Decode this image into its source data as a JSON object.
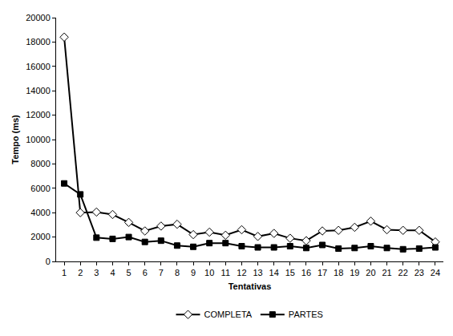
{
  "chart_data": {
    "type": "line",
    "x_label": "Tentativas",
    "y_label": "Tempo (ms)",
    "categories": [
      "1",
      "2",
      "3",
      "4",
      "5",
      "6",
      "7",
      "8",
      "9",
      "10",
      "11",
      "12",
      "13",
      "14",
      "15",
      "16",
      "17",
      "18",
      "19",
      "20",
      "21",
      "22",
      "23",
      "24"
    ],
    "series": [
      {
        "name": "COMPLETA",
        "color": "#000000",
        "marker": "diamond-open",
        "line_style": "solid",
        "values": [
          18400,
          4000,
          4050,
          3850,
          3200,
          2500,
          2900,
          3050,
          2200,
          2400,
          2150,
          2600,
          2050,
          2300,
          1900,
          1700,
          2500,
          2550,
          2800,
          3300,
          2600,
          2550,
          2550,
          1600
        ]
      },
      {
        "name": "PARTES",
        "color": "#000000",
        "marker": "square",
        "line_style": "solid",
        "values": [
          6400,
          5500,
          1950,
          1850,
          2000,
          1600,
          1700,
          1300,
          1200,
          1500,
          1500,
          1250,
          1150,
          1150,
          1250,
          1100,
          1350,
          1050,
          1100,
          1250,
          1100,
          1000,
          1050,
          1150
        ]
      }
    ],
    "ylim": [
      0,
      20000
    ],
    "yticks": [
      0,
      2000,
      4000,
      6000,
      8000,
      10000,
      12000,
      14000,
      16000,
      18000,
      20000
    ],
    "grid": false,
    "legend": "bottom"
  }
}
